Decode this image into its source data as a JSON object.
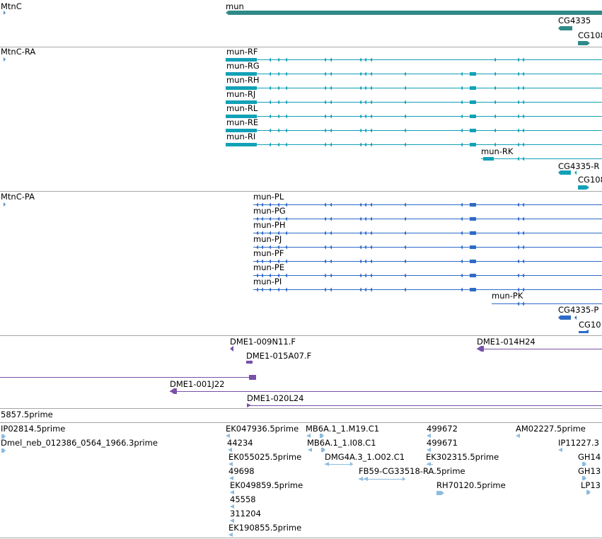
{
  "colors": {
    "gene": "#2e8a87",
    "mrna": "#13a1b7",
    "cds": "#2d6bc7",
    "clone": "#7851a8",
    "est": "#8dbcdf",
    "divider": "#a6a6a6",
    "strand_marker": "#5587c0"
  },
  "tracks": {
    "gene_track": {
      "features": [
        {
          "label": "MtnC"
        },
        {
          "label": "mun"
        },
        {
          "label": "CG4335"
        },
        {
          "label": "CG108"
        }
      ]
    },
    "transcript_track": {
      "features": [
        {
          "label": "MtnC-RA"
        },
        {
          "label": "mun-RF"
        },
        {
          "label": "mun-RG"
        },
        {
          "label": "mun-RH"
        },
        {
          "label": "mun-RJ"
        },
        {
          "label": "mun-RL"
        },
        {
          "label": "mun-RE"
        },
        {
          "label": "mun-RI"
        },
        {
          "label": "mun-RK"
        },
        {
          "label": "CG4335-R"
        },
        {
          "label": "CG108"
        }
      ]
    },
    "protein_track": {
      "features": [
        {
          "label": "MtnC-PA"
        },
        {
          "label": "mun-PL"
        },
        {
          "label": "mun-PG"
        },
        {
          "label": "mun-PH"
        },
        {
          "label": "mun-PJ"
        },
        {
          "label": "mun-PF"
        },
        {
          "label": "mun-PE"
        },
        {
          "label": "mun-PI"
        },
        {
          "label": "mun-PK"
        },
        {
          "label": "CG4335-P"
        },
        {
          "label": "CG10"
        }
      ]
    },
    "clone_track": {
      "features": [
        {
          "label": "DME1-009N11.F"
        },
        {
          "label": "DME1-015A07.F"
        },
        {
          "label": "DME1-014H24"
        },
        {
          "label": "DME1-001J22"
        },
        {
          "label": "DME1-020L24"
        }
      ]
    },
    "est_track": {
      "features": [
        {
          "label": "5857.5prime"
        },
        {
          "label": "IP02814.5prime"
        },
        {
          "label": "Dmel_neb_012386_0564_1966.3prime"
        },
        {
          "label": "EK047936.5prime"
        },
        {
          "label": "44234"
        },
        {
          "label": "EK055025.5prime"
        },
        {
          "label": "49698"
        },
        {
          "label": "EK049859.5prime"
        },
        {
          "label": "45558"
        },
        {
          "label": "311204"
        },
        {
          "label": "EK190855.5prime"
        },
        {
          "label": "MB6A.1_1.M19.C1"
        },
        {
          "label": "MB6A.1_1.I08.C1"
        },
        {
          "label": "DMG4A.3_1.O02.C1"
        },
        {
          "label": "FB59-CG33518-RA.5prime"
        },
        {
          "label": "499672"
        },
        {
          "label": "499671"
        },
        {
          "label": "EK302315.5prime"
        },
        {
          "label": "RH70120.5prime"
        },
        {
          "label": "AM02227.5prime"
        },
        {
          "label": "IP11227.3"
        },
        {
          "label": "GH14"
        },
        {
          "label": "GH13"
        },
        {
          "label": "LP13"
        }
      ]
    }
  }
}
